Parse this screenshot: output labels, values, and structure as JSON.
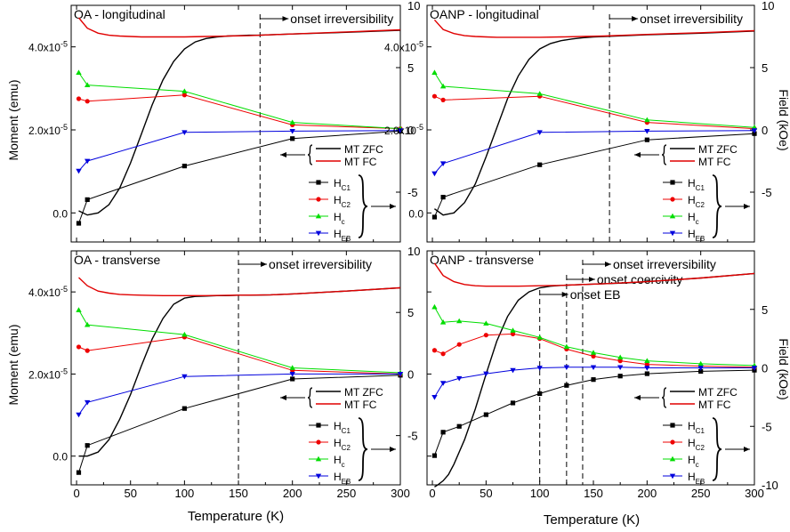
{
  "figure": {
    "x_axis_title": "Temperature (K)",
    "left_axis_title": "Moment (emu)",
    "right_axis_title": "Field (kOe)"
  },
  "colors": {
    "mt_zfc": "#000000",
    "mt_fc": "#e00000",
    "hc1": "#000000",
    "hc2": "#ee0000",
    "hc": "#00dd00",
    "heb": "#0000dd",
    "frame": "#000000",
    "background": "#ffffff"
  },
  "chart_data": [
    {
      "type": "line",
      "title": "OA - longitudinal",
      "xlim": [
        -5,
        300
      ],
      "x_ticks": [
        0,
        50,
        100,
        150,
        200,
        250,
        300
      ],
      "left_ylim": [
        -0.7,
        5.0
      ],
      "left_ticks": [
        0,
        2,
        4
      ],
      "left_tick_labels": [
        "0.0",
        "2.0x10-5",
        "4.0x10-5"
      ],
      "right_ylim": [
        -9,
        10
      ],
      "right_ticks": [
        -5,
        0,
        5,
        10
      ],
      "right_tick_labels": [
        "-5",
        "0",
        "5",
        "10"
      ],
      "legend_position": "lower-right",
      "legend": {
        "mt": [
          "MT ZFC",
          "MT FC"
        ],
        "field": [
          {
            "main": "H",
            "sub": "C1"
          },
          {
            "main": "H",
            "sub": "C2"
          },
          {
            "main": "H",
            "sub": "c"
          },
          {
            "main": "H",
            "sub": "EB"
          }
        ]
      },
      "annotations": [
        {
          "text": "onset irreversibility",
          "x": 170
        }
      ],
      "series": [
        {
          "name": "MT ZFC",
          "axis": "left",
          "style": "line",
          "color": "#000000",
          "x": [
            2,
            10,
            20,
            30,
            40,
            50,
            60,
            70,
            80,
            90,
            100,
            110,
            120,
            130,
            140,
            150,
            160,
            170,
            180,
            200,
            250,
            300
          ],
          "y": [
            0.05,
            -0.05,
            0.0,
            0.2,
            0.6,
            1.2,
            1.9,
            2.6,
            3.2,
            3.65,
            3.95,
            4.12,
            4.2,
            4.24,
            4.26,
            4.27,
            4.28,
            4.28,
            4.29,
            4.31,
            4.35,
            4.4
          ]
        },
        {
          "name": "MT FC",
          "axis": "left",
          "style": "line",
          "color": "#e00000",
          "x": [
            2,
            10,
            20,
            30,
            40,
            50,
            60,
            80,
            100,
            120,
            140,
            160,
            180,
            200,
            250,
            300
          ],
          "y": [
            4.7,
            4.45,
            4.33,
            4.28,
            4.26,
            4.25,
            4.24,
            4.24,
            4.24,
            4.25,
            4.26,
            4.27,
            4.29,
            4.31,
            4.36,
            4.41
          ]
        },
        {
          "name": "HC1",
          "axis": "right",
          "style": "marker",
          "marker": "square",
          "color": "#000000",
          "x": [
            2,
            10,
            100,
            200,
            300
          ],
          "y": [
            -7.5,
            -5.6,
            -2.9,
            -0.7,
            -0.1
          ]
        },
        {
          "name": "HC2",
          "axis": "right",
          "style": "marker",
          "marker": "circle",
          "color": "#ee0000",
          "x": [
            2,
            10,
            100,
            200,
            300
          ],
          "y": [
            2.5,
            2.3,
            2.8,
            0.4,
            0.1
          ]
        },
        {
          "name": "Hc",
          "axis": "right",
          "style": "marker",
          "marker": "triangle-up",
          "color": "#00dd00",
          "x": [
            2,
            10,
            100,
            200,
            300
          ],
          "y": [
            4.6,
            3.6,
            3.1,
            0.6,
            0.1
          ]
        },
        {
          "name": "HEB",
          "axis": "right",
          "style": "marker",
          "marker": "triangle-down",
          "color": "#0000dd",
          "x": [
            2,
            10,
            100,
            200,
            300
          ],
          "y": [
            -3.3,
            -2.5,
            -0.2,
            -0.1,
            -0.05
          ]
        }
      ]
    },
    {
      "type": "line",
      "title": "OANP - longitudinal",
      "xlim": [
        -5,
        300
      ],
      "x_ticks": [
        0,
        50,
        100,
        150,
        200,
        250,
        300
      ],
      "left_ylim": [
        -0.7,
        5.0
      ],
      "left_ticks": [
        0,
        2,
        4
      ],
      "left_tick_labels": [
        "0.0",
        "2.0x10-5",
        "4.0x10-5"
      ],
      "right_ylim": [
        -9,
        10
      ],
      "right_ticks": [
        -5,
        0,
        5,
        10
      ],
      "right_tick_labels": [
        "-5",
        "0",
        "5",
        "10"
      ],
      "legend_position": "lower-right",
      "legend": {
        "mt": [
          "MT ZFC",
          "MT FC"
        ],
        "field": [
          {
            "main": "H",
            "sub": "C1"
          },
          {
            "main": "H",
            "sub": "C2"
          },
          {
            "main": "H",
            "sub": "c"
          },
          {
            "main": "H",
            "sub": "EB"
          }
        ]
      },
      "annotations": [
        {
          "text": "onset irreversibility",
          "x": 165
        }
      ],
      "series": [
        {
          "name": "MT ZFC",
          "axis": "left",
          "style": "line",
          "color": "#000000",
          "x": [
            2,
            10,
            20,
            30,
            40,
            50,
            60,
            70,
            80,
            90,
            100,
            110,
            120,
            130,
            140,
            150,
            160,
            170,
            180,
            200,
            250,
            300
          ],
          "y": [
            0.1,
            -0.05,
            0.0,
            0.25,
            0.7,
            1.35,
            2.05,
            2.75,
            3.3,
            3.7,
            3.95,
            4.08,
            4.15,
            4.19,
            4.22,
            4.24,
            4.25,
            4.26,
            4.27,
            4.29,
            4.33,
            4.38
          ]
        },
        {
          "name": "MT FC",
          "axis": "left",
          "style": "line",
          "color": "#e00000",
          "x": [
            2,
            10,
            20,
            30,
            40,
            50,
            60,
            80,
            100,
            120,
            140,
            160,
            180,
            200,
            250,
            300
          ],
          "y": [
            4.65,
            4.42,
            4.32,
            4.27,
            4.25,
            4.24,
            4.23,
            4.23,
            4.23,
            4.24,
            4.25,
            4.26,
            4.28,
            4.3,
            4.34,
            4.39
          ]
        },
        {
          "name": "HC1",
          "axis": "right",
          "style": "marker",
          "marker": "square",
          "color": "#000000",
          "x": [
            2,
            10,
            100,
            200,
            300
          ],
          "y": [
            -7.0,
            -5.4,
            -2.8,
            -0.8,
            -0.3
          ]
        },
        {
          "name": "HC2",
          "axis": "right",
          "style": "marker",
          "marker": "circle",
          "color": "#ee0000",
          "x": [
            2,
            10,
            100,
            200,
            300
          ],
          "y": [
            2.7,
            2.4,
            2.7,
            0.6,
            0.1
          ]
        },
        {
          "name": "Hc",
          "axis": "right",
          "style": "marker",
          "marker": "triangle-up",
          "color": "#00dd00",
          "x": [
            2,
            10,
            100,
            200,
            300
          ],
          "y": [
            4.6,
            3.5,
            2.9,
            0.8,
            0.2
          ]
        },
        {
          "name": "HEB",
          "axis": "right",
          "style": "marker",
          "marker": "triangle-down",
          "color": "#0000dd",
          "x": [
            2,
            10,
            100,
            200,
            300
          ],
          "y": [
            -3.5,
            -2.7,
            -0.2,
            -0.1,
            -0.05
          ]
        }
      ]
    },
    {
      "type": "line",
      "title": "OA - transverse",
      "xlim": [
        -5,
        300
      ],
      "x_ticks": [
        0,
        50,
        100,
        150,
        200,
        250,
        300
      ],
      "x_tick_labels": [
        "0",
        "50",
        "100",
        "150",
        "200",
        "250",
        "300"
      ],
      "left_ylim": [
        -0.7,
        5.0
      ],
      "left_ticks": [
        0,
        2,
        4
      ],
      "left_tick_labels": [
        "0.0",
        "2.0x10-5",
        "4.0x10-5"
      ],
      "right_ylim": [
        -9,
        10
      ],
      "right_ticks": [
        -5,
        0,
        5,
        10
      ],
      "right_tick_labels": [
        "-5",
        "0",
        "5",
        "10"
      ],
      "legend_position": "lower-right",
      "legend": {
        "mt": [
          "MT ZFC",
          "MT FC"
        ],
        "field": [
          {
            "main": "H",
            "sub": "C1"
          },
          {
            "main": "H",
            "sub": "C2"
          },
          {
            "main": "H",
            "sub": "c"
          },
          {
            "main": "H",
            "sub": "EB"
          }
        ]
      },
      "annotations": [
        {
          "text": "onset irreversibility",
          "x": 150
        }
      ],
      "series": [
        {
          "name": "MT ZFC",
          "axis": "left",
          "style": "line",
          "color": "#000000",
          "x": [
            2,
            10,
            20,
            30,
            40,
            50,
            60,
            70,
            80,
            90,
            100,
            110,
            120,
            130,
            140,
            150,
            160,
            180,
            200,
            250,
            300
          ],
          "y": [
            0.0,
            0.0,
            0.1,
            0.4,
            0.9,
            1.5,
            2.2,
            2.85,
            3.35,
            3.7,
            3.85,
            3.89,
            3.9,
            3.91,
            3.91,
            3.92,
            3.92,
            3.93,
            3.95,
            4.02,
            4.1
          ]
        },
        {
          "name": "MT FC",
          "axis": "left",
          "style": "line",
          "color": "#e00000",
          "x": [
            2,
            10,
            20,
            30,
            40,
            50,
            60,
            80,
            100,
            120,
            150,
            180,
            200,
            250,
            300
          ],
          "y": [
            4.35,
            4.15,
            4.02,
            3.97,
            3.94,
            3.93,
            3.92,
            3.91,
            3.91,
            3.91,
            3.92,
            3.93,
            3.95,
            4.02,
            4.1
          ]
        },
        {
          "name": "HC1",
          "axis": "right",
          "style": "marker",
          "marker": "square",
          "color": "#000000",
          "x": [
            2,
            10,
            100,
            200,
            300
          ],
          "y": [
            -8.0,
            -5.8,
            -2.8,
            -0.4,
            -0.1
          ]
        },
        {
          "name": "HC2",
          "axis": "right",
          "style": "marker",
          "marker": "circle",
          "color": "#ee0000",
          "x": [
            2,
            10,
            100,
            200,
            300
          ],
          "y": [
            2.2,
            1.9,
            3.0,
            0.3,
            0.0
          ]
        },
        {
          "name": "Hc",
          "axis": "right",
          "style": "marker",
          "marker": "triangle-up",
          "color": "#00dd00",
          "x": [
            2,
            10,
            100,
            200,
            300
          ],
          "y": [
            5.2,
            4.0,
            3.2,
            0.5,
            0.1
          ]
        },
        {
          "name": "HEB",
          "axis": "right",
          "style": "marker",
          "marker": "triangle-down",
          "color": "#0000dd",
          "x": [
            2,
            10,
            100,
            200,
            300
          ],
          "y": [
            -3.3,
            -2.3,
            -0.2,
            0.0,
            0.0
          ]
        }
      ]
    },
    {
      "type": "line",
      "title": "OANP - transverse",
      "xlim": [
        -5,
        300
      ],
      "x_ticks": [
        0,
        50,
        100,
        150,
        200,
        250,
        300
      ],
      "x_tick_labels": [
        "0",
        "50",
        "100",
        "150",
        "200",
        "250",
        "300"
      ],
      "left_ylim": [
        -0.7,
        5.0
      ],
      "left_ticks": [
        0,
        2,
        4
      ],
      "right_ylim": [
        -10,
        10
      ],
      "right_ticks": [
        -10,
        -5,
        0,
        5
      ],
      "right_tick_labels": [
        "-10",
        "-5",
        "0",
        "5"
      ],
      "legend_position": "lower-right",
      "legend": {
        "mt": [
          "MT ZFC",
          "MT FC"
        ],
        "field": [
          {
            "main": "H",
            "sub": "C1"
          },
          {
            "main": "H",
            "sub": "C2"
          },
          {
            "main": "H",
            "sub": "c"
          },
          {
            "main": "H",
            "sub": "EB"
          }
        ]
      },
      "annotations": [
        {
          "text": "onset irreversibility",
          "x": 140
        },
        {
          "text": "onset coercivity",
          "x": 125
        },
        {
          "text": "onset EB",
          "x": 100
        }
      ],
      "series": [
        {
          "name": "MT ZFC",
          "axis": "left",
          "style": "line",
          "color": "#000000",
          "x": [
            2,
            5,
            10,
            15,
            20,
            30,
            40,
            50,
            60,
            70,
            80,
            90,
            100,
            110,
            120,
            130,
            140,
            160,
            180,
            200,
            250,
            300
          ],
          "y": [
            -0.75,
            -0.7,
            -0.6,
            -0.45,
            -0.2,
            0.4,
            1.15,
            2.0,
            2.8,
            3.4,
            3.8,
            4.0,
            4.1,
            4.14,
            4.16,
            4.17,
            4.18,
            4.2,
            4.22,
            4.25,
            4.34,
            4.45
          ]
        },
        {
          "name": "MT FC",
          "axis": "left",
          "style": "line",
          "color": "#e00000",
          "x": [
            2,
            10,
            20,
            30,
            40,
            50,
            60,
            80,
            100,
            120,
            140,
            160,
            200,
            250,
            300
          ],
          "y": [
            4.7,
            4.4,
            4.25,
            4.18,
            4.15,
            4.14,
            4.14,
            4.14,
            4.15,
            4.16,
            4.18,
            4.2,
            4.25,
            4.34,
            4.45
          ]
        },
        {
          "name": "HC1",
          "axis": "right",
          "style": "marker",
          "marker": "square",
          "color": "#000000",
          "x": [
            2,
            10,
            25,
            50,
            75,
            100,
            125,
            150,
            175,
            200,
            250,
            300
          ],
          "y": [
            -7.5,
            -5.5,
            -5.0,
            -4.0,
            -3.0,
            -2.2,
            -1.5,
            -1.0,
            -0.7,
            -0.5,
            -0.3,
            -0.2
          ]
        },
        {
          "name": "HC2",
          "axis": "right",
          "style": "marker",
          "marker": "circle",
          "color": "#ee0000",
          "x": [
            2,
            10,
            25,
            50,
            75,
            100,
            125,
            150,
            175,
            200,
            250,
            300
          ],
          "y": [
            1.5,
            1.2,
            2.0,
            2.8,
            2.9,
            2.5,
            1.6,
            1.0,
            0.6,
            0.3,
            0.15,
            0.05
          ]
        },
        {
          "name": "Hc",
          "axis": "right",
          "style": "marker",
          "marker": "triangle-up",
          "color": "#00dd00",
          "x": [
            2,
            10,
            25,
            50,
            75,
            100,
            125,
            150,
            175,
            200,
            250,
            300
          ],
          "y": [
            5.2,
            3.9,
            4.0,
            3.8,
            3.2,
            2.6,
            1.8,
            1.3,
            0.9,
            0.6,
            0.35,
            0.2
          ]
        },
        {
          "name": "HEB",
          "axis": "right",
          "style": "marker",
          "marker": "triangle-down",
          "color": "#0000dd",
          "x": [
            2,
            10,
            25,
            50,
            75,
            100,
            125,
            150,
            175,
            200,
            250,
            300
          ],
          "y": [
            -2.5,
            -1.3,
            -0.9,
            -0.5,
            -0.2,
            0.0,
            0.05,
            0.05,
            0.05,
            0.0,
            0.0,
            0.0
          ]
        }
      ]
    }
  ]
}
